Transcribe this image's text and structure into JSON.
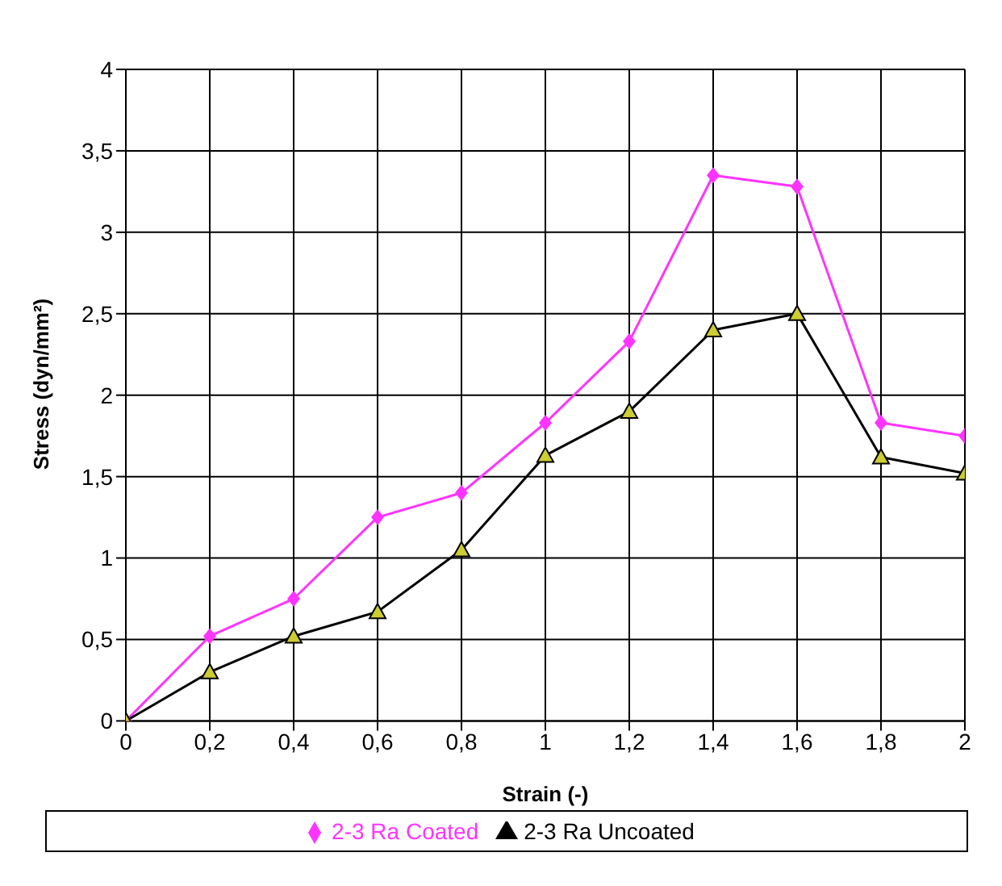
{
  "chart_data": {
    "type": "line",
    "xlabel": "Strain (-)",
    "ylabel": "Stress (dyn/mm²)",
    "x": [
      0,
      0.2,
      0.4,
      0.6,
      0.8,
      1,
      1.2,
      1.4,
      1.6,
      1.8,
      2
    ],
    "series": [
      {
        "name": "2-3 Ra Coated",
        "color": "#ff33ff",
        "marker": "diamond",
        "values": [
          0,
          0.52,
          0.75,
          1.25,
          1.4,
          1.83,
          2.33,
          3.35,
          3.28,
          1.83,
          1.75
        ]
      },
      {
        "name": "2-3 Ra Uncoated",
        "color": "#000000",
        "marker": "triangle",
        "values": [
          0,
          0.3,
          0.52,
          0.67,
          1.05,
          1.63,
          1.9,
          2.4,
          2.5,
          1.62,
          1.52
        ]
      }
    ],
    "xlim": [
      0,
      2
    ],
    "xticks": [
      0,
      {
        "value": 0.2,
        "label": "0,2"
      },
      {
        "value": 0.4,
        "label": "0,4"
      },
      {
        "value": 0.6,
        "label": "0,6"
      },
      {
        "value": 0.8,
        "label": "0,8"
      },
      1,
      {
        "value": 1.2,
        "label": "1,2"
      },
      {
        "value": 1.4,
        "label": "1,4"
      },
      {
        "value": 1.6,
        "label": "1,6"
      },
      {
        "value": 1.8,
        "label": "1,8"
      },
      2
    ],
    "ylim": [
      0,
      4
    ],
    "yticks": [
      0,
      {
        "value": 0.5,
        "label": "0,5"
      },
      1,
      {
        "value": 1.5,
        "label": "1,5"
      },
      2,
      {
        "value": 2.5,
        "label": "2,5"
      },
      3,
      {
        "value": 3.5,
        "label": "3,5"
      },
      4
    ],
    "grid": true,
    "legend": "bottom"
  }
}
